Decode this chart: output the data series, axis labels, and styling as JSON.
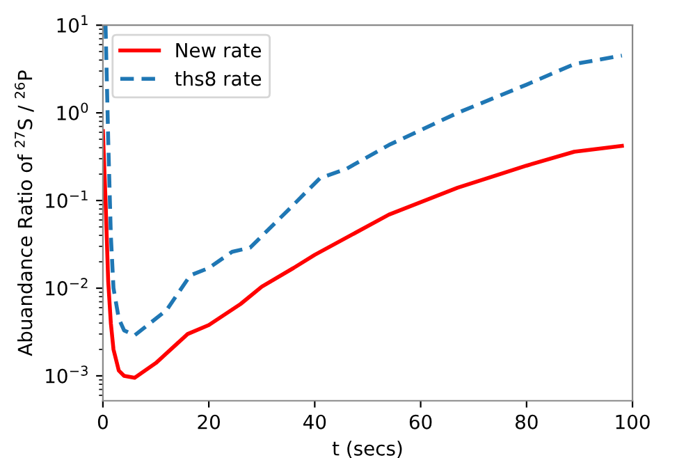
{
  "chart_data": {
    "type": "line",
    "xlabel": "t (secs)",
    "ylabel": "Abuandance Ratio of $^{27}$S / $^{26}$P",
    "log": "y",
    "xlim": [
      0,
      100
    ],
    "xticks": [
      0,
      20,
      40,
      60,
      80,
      100
    ],
    "ylim": [
      0.00052,
      10
    ],
    "yticks": [
      {
        "value": 0.001,
        "label": "10$^{−3}$"
      },
      {
        "value": 0.01,
        "label": "10$^{−2}$"
      },
      {
        "value": 0.1,
        "label": "10$^{−1}$"
      },
      {
        "value": 1,
        "label": "10$^{0}$"
      },
      {
        "value": 10,
        "label": "10$^{1}$"
      }
    ],
    "legend": "top left",
    "grid": false,
    "series": [
      {
        "name": "New rate",
        "color": "#ff0000",
        "line_style": "solid",
        "x": [
          0,
          0.5,
          1,
          1.5,
          2,
          3,
          4,
          6,
          10,
          16,
          20,
          26,
          30,
          36,
          40,
          54,
          67,
          80,
          89,
          98
        ],
        "values": [
          0.62,
          0.1,
          0.012,
          0.004,
          0.002,
          0.00115,
          0.001,
          0.00095,
          0.0014,
          0.003,
          0.0038,
          0.0066,
          0.0104,
          0.017,
          0.024,
          0.069,
          0.14,
          0.25,
          0.36,
          0.42
        ]
      },
      {
        "name": "ths8 rate",
        "color": "#1f77b4",
        "line_style": "dashed",
        "x": [
          0.5,
          1,
          1.5,
          2,
          3,
          4,
          6,
          12,
          16.5,
          20,
          24.4,
          27.8,
          35,
          41,
          46,
          54,
          67,
          80,
          89,
          98
        ],
        "values": [
          10,
          0.5,
          0.04,
          0.01,
          0.0045,
          0.0033,
          0.0029,
          0.0056,
          0.014,
          0.017,
          0.026,
          0.029,
          0.078,
          0.18,
          0.23,
          0.43,
          1.0,
          2.1,
          3.6,
          4.5
        ]
      }
    ]
  }
}
